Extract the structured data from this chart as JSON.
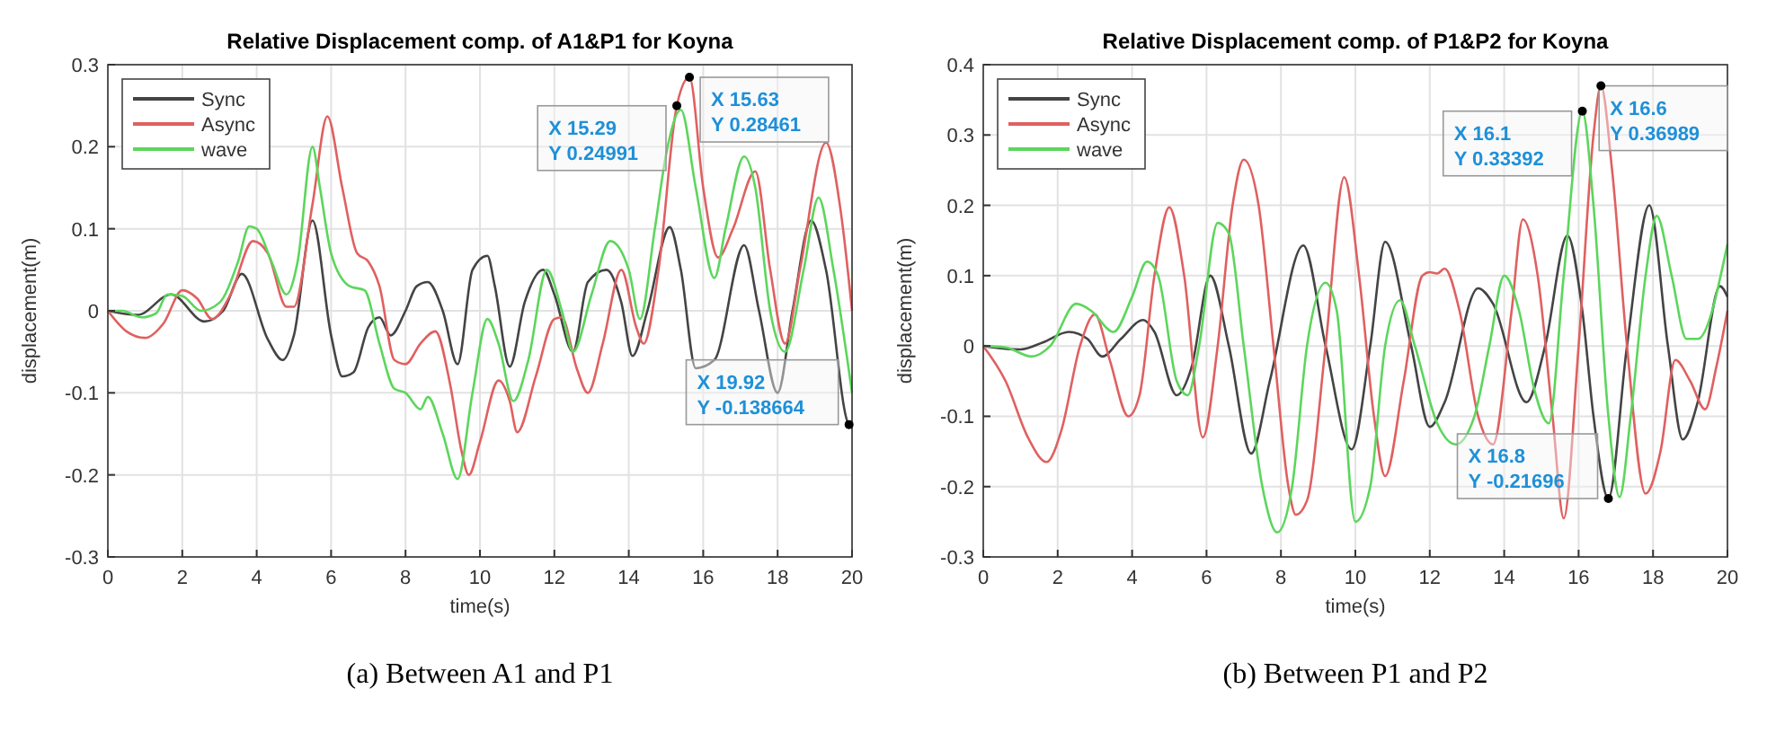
{
  "chart_data": [
    {
      "type": "line",
      "title": "Relative Displacement comp. of A1&P1 for Koyna",
      "xlabel": "time(s)",
      "ylabel": "displacement(m)",
      "xlim": [
        0,
        20
      ],
      "ylim": [
        -0.3,
        0.3
      ],
      "xticks": [
        0,
        2,
        4,
        6,
        8,
        10,
        12,
        14,
        16,
        18,
        20
      ],
      "yticks": [
        -0.3,
        -0.2,
        -0.1,
        0,
        0.1,
        0.2,
        0.3
      ],
      "grid": true,
      "legend": "top left",
      "line_style": "solid",
      "marker": "none",
      "series": [
        {
          "name": "Sync",
          "color": "#444444",
          "x": [
            0,
            0.8,
            1.7,
            2.6,
            3.1,
            3.6,
            4.3,
            4.7,
            5.0,
            5.5,
            6.0,
            6.3,
            6.6,
            7.0,
            7.3,
            7.6,
            8.0,
            8.3,
            8.6,
            9.0,
            9.4,
            9.8,
            10.2,
            10.4,
            10.8,
            11.2,
            11.7,
            12.0,
            12.5,
            12.9,
            13.4,
            13.8,
            14.1,
            14.5,
            15.1,
            15.4,
            15.8,
            16.3,
            17.1,
            17.5,
            18.0,
            18.4,
            18.9,
            19.3,
            19.92,
            20
          ],
          "values": [
            0,
            -0.005,
            0.02,
            -0.013,
            0,
            0.045,
            -0.035,
            -0.06,
            -0.03,
            0.11,
            -0.03,
            -0.08,
            -0.075,
            -0.02,
            -0.008,
            -0.03,
            0,
            0.03,
            0.035,
            0,
            -0.065,
            0.05,
            0.067,
            0.03,
            -0.068,
            0.01,
            0.05,
            0.02,
            -0.05,
            0.035,
            0.05,
            0.01,
            -0.055,
            0,
            0.102,
            0.05,
            -0.07,
            -0.06,
            0.08,
            0,
            -0.1,
            0,
            0.11,
            0.05,
            -0.138664,
            -0.14
          ]
        },
        {
          "name": "Async",
          "color": "#e06060",
          "x": [
            0,
            0.5,
            1.0,
            1.5,
            2.0,
            2.4,
            2.8,
            3.3,
            3.9,
            4.3,
            4.8,
            5.0,
            5.5,
            5.9,
            6.3,
            6.7,
            7.0,
            7.3,
            7.7,
            8.0,
            8.4,
            8.8,
            9.2,
            9.5,
            9.7,
            10.0,
            10.5,
            10.8,
            11.0,
            11.5,
            12.0,
            12.2,
            12.6,
            12.9,
            13.3,
            13.8,
            14.2,
            14.4,
            14.8,
            15.29,
            15.63,
            16.0,
            16.4,
            16.8,
            17.4,
            17.8,
            18.2,
            18.6,
            19.3,
            19.7,
            20
          ],
          "values": [
            0,
            -0.025,
            -0.033,
            -0.015,
            0.025,
            0.015,
            -0.01,
            0.02,
            0.085,
            0.07,
            0.005,
            0.005,
            0.13,
            0.237,
            0.15,
            0.07,
            0.06,
            0.03,
            -0.06,
            -0.065,
            -0.04,
            -0.025,
            -0.09,
            -0.17,
            -0.2,
            -0.16,
            -0.085,
            -0.11,
            -0.148,
            -0.08,
            -0.01,
            -0.008,
            -0.07,
            -0.1,
            -0.04,
            0.05,
            -0.02,
            -0.04,
            0.05,
            0.24991,
            0.28461,
            0.15,
            0.065,
            0.1,
            0.17,
            0.05,
            -0.04,
            0.05,
            0.205,
            0.12,
            0
          ]
        },
        {
          "name": "wave",
          "color": "#5cd65c",
          "x": [
            0,
            0.4,
            0.9,
            1.3,
            1.6,
            2.0,
            2.5,
            3.0,
            3.5,
            3.8,
            4.0,
            4.4,
            4.8,
            5.1,
            5.5,
            5.7,
            6.0,
            6.5,
            6.9,
            7.3,
            7.7,
            8.0,
            8.4,
            8.6,
            9.0,
            9.4,
            9.8,
            10.2,
            10.5,
            10.9,
            11.3,
            11.8,
            12.2,
            12.5,
            13.0,
            13.5,
            14.0,
            14.3,
            14.7,
            15.0,
            15.4,
            15.8,
            16.3,
            16.6,
            17.1,
            17.4,
            17.8,
            18.2,
            18.7,
            19.1,
            19.5,
            20
          ],
          "values": [
            0,
            0,
            -0.008,
            -0.003,
            0.02,
            0.018,
            0,
            0.01,
            0.06,
            0.103,
            0.1,
            0.06,
            0.02,
            0.06,
            0.2,
            0.15,
            0.07,
            0.03,
            0.025,
            -0.04,
            -0.095,
            -0.1,
            -0.12,
            -0.105,
            -0.15,
            -0.205,
            -0.1,
            -0.01,
            -0.04,
            -0.11,
            -0.06,
            0.05,
            0,
            -0.05,
            0.02,
            0.085,
            0.05,
            -0.01,
            0.1,
            0.19,
            0.245,
            0.15,
            0.04,
            0.1,
            0.188,
            0.15,
            0,
            -0.05,
            0.05,
            0.138,
            0.05,
            -0.1
          ]
        }
      ],
      "annotations": [
        {
          "text": "X 15.29\nY 0.24991",
          "x": 15.29,
          "y": 0.24991
        },
        {
          "text": "X 15.63\nY 0.28461",
          "x": 15.63,
          "y": 0.28461
        },
        {
          "text": "X 19.92\nY -0.138664",
          "x": 19.92,
          "y": -0.138664
        },
        "(a)  Between A1 and P1"
      ]
    },
    {
      "type": "line",
      "title": "Relative Displacement comp. of P1&P2 for Koyna",
      "xlabel": "time(s)",
      "ylabel": "displacement(m)",
      "xlim": [
        0,
        20
      ],
      "ylim": [
        -0.3,
        0.4
      ],
      "xticks": [
        0,
        2,
        4,
        6,
        8,
        10,
        12,
        14,
        16,
        18,
        20
      ],
      "yticks": [
        -0.3,
        -0.2,
        -0.1,
        0,
        0.1,
        0.2,
        0.3,
        0.4
      ],
      "grid": true,
      "legend": "top left",
      "line_style": "solid",
      "marker": "none",
      "series": [
        {
          "name": "Sync",
          "color": "#444444",
          "x": [
            0,
            1.0,
            1.6,
            2.3,
            2.8,
            3.2,
            3.7,
            4.3,
            4.6,
            5.2,
            5.6,
            6.1,
            6.6,
            7.2,
            7.7,
            8.6,
            9.2,
            9.9,
            10.4,
            10.8,
            11.5,
            12.0,
            12.4,
            13.3,
            13.7,
            14.6,
            15.1,
            15.7,
            16.1,
            16.4,
            16.8,
            17.3,
            17.9,
            18.4,
            18.8,
            19.2,
            19.8,
            20
          ],
          "values": [
            0,
            -0.005,
            0.005,
            0.02,
            0.01,
            -0.015,
            0.01,
            0.037,
            0.02,
            -0.07,
            -0.03,
            0.1,
            0,
            -0.153,
            -0.05,
            0.143,
            0,
            -0.147,
            0,
            0.148,
            0,
            -0.115,
            -0.08,
            0.082,
            0.06,
            -0.08,
            0,
            0.157,
            0.05,
            -0.1,
            -0.21696,
            0,
            0.2,
            0,
            -0.133,
            -0.08,
            0.085,
            0.07
          ]
        },
        {
          "name": "Async",
          "color": "#e06060",
          "x": [
            0,
            0.6,
            1.2,
            1.7,
            2.1,
            2.6,
            3.0,
            3.4,
            3.9,
            4.2,
            4.6,
            5.0,
            5.4,
            5.9,
            6.3,
            6.7,
            7.0,
            7.4,
            7.8,
            8.2,
            8.4,
            8.7,
            9.2,
            9.7,
            10.1,
            10.5,
            10.8,
            11.3,
            11.8,
            12.0,
            12.2,
            12.4,
            12.8,
            13.3,
            13.7,
            14.2,
            14.5,
            14.9,
            15.3,
            15.6,
            16.0,
            16.4,
            16.6,
            16.9,
            17.3,
            17.8,
            18.2,
            18.6,
            19.0,
            19.4,
            19.7,
            20
          ],
          "values": [
            0,
            -0.05,
            -0.13,
            -0.165,
            -0.12,
            0,
            0.045,
            -0.02,
            -0.1,
            -0.07,
            0.1,
            0.197,
            0.1,
            -0.13,
            0,
            0.2,
            0.265,
            0.2,
            0,
            -0.2,
            -0.24,
            -0.22,
            0,
            0.24,
            0.1,
            -0.1,
            -0.185,
            -0.05,
            0.1,
            0.105,
            0.103,
            0.11,
            0.05,
            -0.1,
            -0.14,
            0.05,
            0.18,
            0.1,
            -0.1,
            -0.245,
            0,
            0.3,
            0.36989,
            0.25,
            0,
            -0.21,
            -0.15,
            -0.02,
            -0.05,
            -0.09,
            -0.03,
            0.05
          ]
        },
        {
          "name": "wave",
          "color": "#5cd65c",
          "x": [
            0,
            0.6,
            1.3,
            1.8,
            2.5,
            2.9,
            3.5,
            4.0,
            4.4,
            4.7,
            5.2,
            5.5,
            5.8,
            6.3,
            6.6,
            7.0,
            7.5,
            7.9,
            8.3,
            8.7,
            9.2,
            9.5,
            10.0,
            10.4,
            10.8,
            11.2,
            11.6,
            12.2,
            12.7,
            13.2,
            13.6,
            14.0,
            14.4,
            14.8,
            15.2,
            15.6,
            16.1,
            16.4,
            16.8,
            17.1,
            17.4,
            17.8,
            18.1,
            18.5,
            18.9,
            19.2,
            20
          ],
          "values": [
            0,
            -0.002,
            -0.015,
            0,
            0.06,
            0.05,
            0.02,
            0.07,
            0.12,
            0.1,
            -0.05,
            -0.07,
            0,
            0.175,
            0.16,
            0,
            -0.2,
            -0.265,
            -0.2,
            0,
            0.09,
            0.05,
            -0.25,
            -0.2,
            0,
            0.065,
            0,
            -0.11,
            -0.14,
            -0.1,
            0,
            0.1,
            0.05,
            -0.06,
            -0.11,
            0.1,
            0.33392,
            0.2,
            -0.1,
            -0.215,
            -0.1,
            0.1,
            0.185,
            0.1,
            0.01,
            0.01,
            0.145
          ]
        }
      ],
      "annotations": [
        {
          "text": "X 16.1\nY 0.33392",
          "x": 16.1,
          "y": 0.33392
        },
        {
          "text": "X 16.6\nY 0.36989",
          "x": 16.6,
          "y": 0.36989
        },
        {
          "text": "X 16.8\nY -0.21696",
          "x": 16.8,
          "y": -0.21696
        },
        "(b)  Between P1 and P2"
      ]
    }
  ]
}
